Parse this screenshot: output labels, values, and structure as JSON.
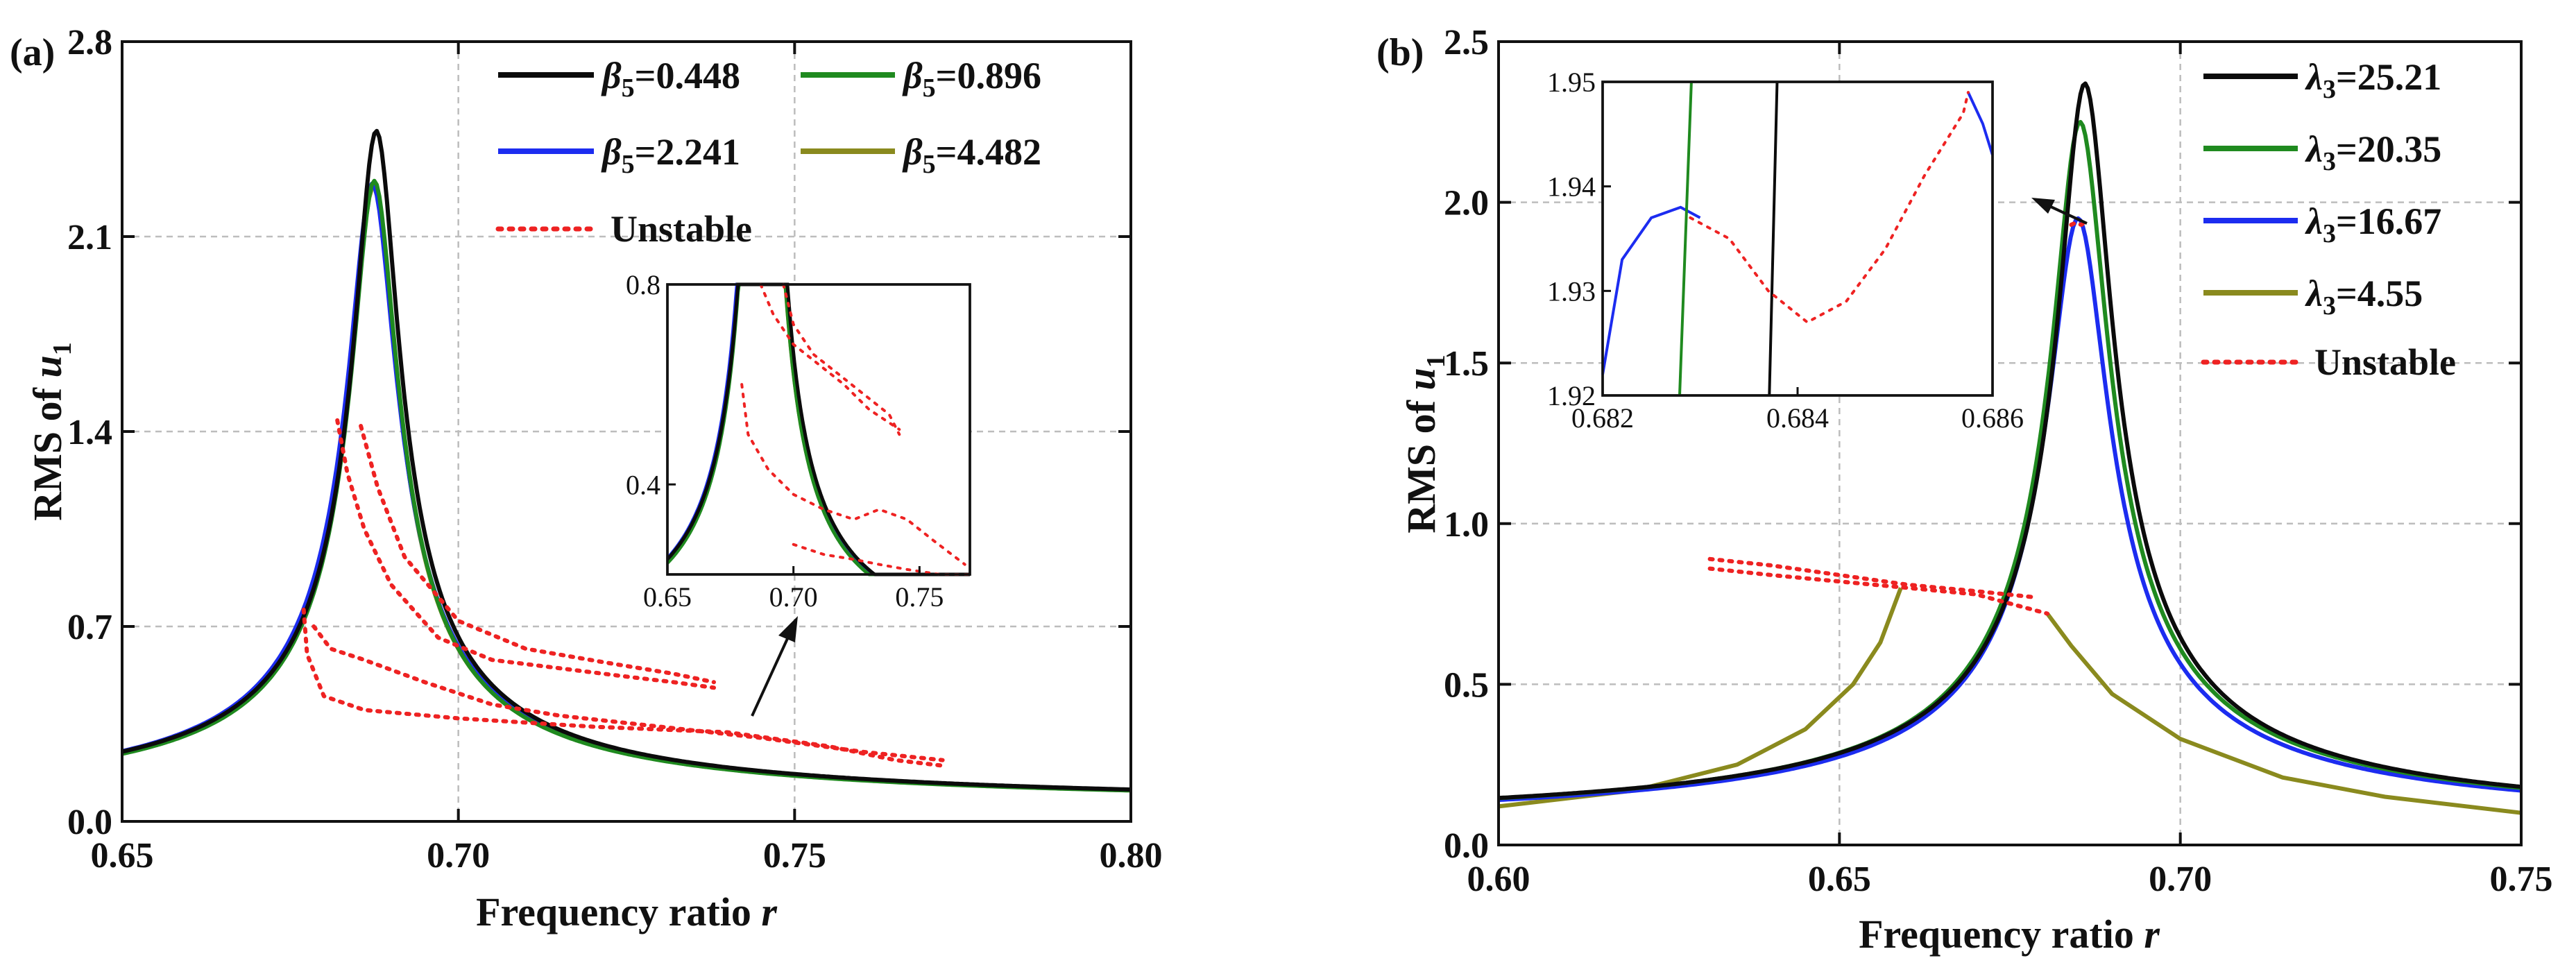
{
  "colors": {
    "black": "#0b0b0b",
    "green": "#1f8a1f",
    "blue": "#1c2cf0",
    "olive": "#8a8a1e",
    "unstable": "#ee2222"
  },
  "chart_data": [
    {
      "panel": "(a)",
      "type": "line",
      "xlabel_text": "Frequency ratio",
      "xlabel_var": "r",
      "ylabel_text": "RMS of",
      "ylabel_var": "u",
      "ylabel_sub": "1",
      "xlim": [
        0.65,
        0.8
      ],
      "ylim": [
        0.0,
        2.8
      ],
      "xticks": [
        "0.65",
        "0.70",
        "0.75",
        "0.80"
      ],
      "yticks": [
        "0.0",
        "0.7",
        "1.4",
        "2.1",
        "2.8"
      ],
      "legend_location": "top-right",
      "series": [
        {
          "name": "β5=0.448",
          "sym": "β",
          "sub": "5",
          "val": "=0.448",
          "color": "#0b0b0b",
          "peak_x": 0.6878,
          "peak_y": 2.48,
          "width": 0.0064
        },
        {
          "name": "β5=0.896",
          "sym": "β",
          "sub": "5",
          "val": "=0.896",
          "color": "#1f8a1f",
          "peak_x": 0.6875,
          "peak_y": 2.3,
          "width": 0.0066
        },
        {
          "name": "β5=2.241",
          "sym": "β",
          "sub": "5",
          "val": "=2.241",
          "color": "#1c2cf0",
          "peak_x": 0.6872,
          "peak_y": 2.29,
          "width": 0.0069
        },
        {
          "name": "β5=4.482",
          "sym": "β",
          "sub": "5",
          "val": "=4.482",
          "color": "#8a8a1e",
          "peak_x": 0.6874,
          "peak_y": 2.28,
          "width": 0.0067
        }
      ],
      "unstable_label": "Unstable",
      "unstable_branches": [
        {
          "x": [
            0.682,
            0.6835,
            0.686,
            0.69,
            0.697,
            0.705,
            0.715,
            0.725,
            0.732,
            0.738
          ],
          "y": [
            1.44,
            1.25,
            1.05,
            0.85,
            0.66,
            0.58,
            0.55,
            0.52,
            0.5,
            0.48
          ]
        },
        {
          "x": [
            0.6855,
            0.688,
            0.692,
            0.7,
            0.71,
            0.722,
            0.732,
            0.738
          ],
          "y": [
            1.42,
            1.2,
            0.95,
            0.72,
            0.62,
            0.57,
            0.53,
            0.5
          ]
        },
        {
          "x": [
            0.677,
            0.6775,
            0.68,
            0.686,
            0.7,
            0.72,
            0.74,
            0.755,
            0.765,
            0.772
          ],
          "y": [
            0.76,
            0.6,
            0.45,
            0.4,
            0.37,
            0.34,
            0.32,
            0.27,
            0.22,
            0.2
          ]
        },
        {
          "x": [
            0.6785,
            0.681,
            0.686,
            0.695,
            0.705,
            0.715,
            0.73,
            0.745,
            0.76,
            0.772
          ],
          "y": [
            0.7,
            0.62,
            0.58,
            0.5,
            0.42,
            0.38,
            0.34,
            0.3,
            0.25,
            0.22
          ]
        }
      ],
      "inset": {
        "xlim": [
          0.65,
          0.77
        ],
        "ylim": [
          0.22,
          0.8
        ],
        "xticks": [
          "0.65",
          "0.70",
          "0.75"
        ],
        "yticks": [
          "0.4",
          "0.8"
        ],
        "unstable_branches": [
          {
            "x": [
              0.687,
              0.692,
              0.7,
              0.71,
              0.72,
              0.73,
              0.742
            ],
            "y": [
              0.8,
              0.74,
              0.68,
              0.64,
              0.6,
              0.55,
              0.51
            ]
          },
          {
            "x": [
              0.696,
              0.7,
              0.708,
              0.718,
              0.728,
              0.738,
              0.742
            ],
            "y": [
              0.8,
              0.72,
              0.66,
              0.62,
              0.58,
              0.54,
              0.5
            ]
          },
          {
            "x": [
              0.6795,
              0.682,
              0.69,
              0.7,
              0.712,
              0.724,
              0.734,
              0.745,
              0.755,
              0.768
            ],
            "y": [
              0.6,
              0.5,
              0.43,
              0.38,
              0.35,
              0.33,
              0.35,
              0.33,
              0.29,
              0.24
            ]
          },
          {
            "x": [
              0.7,
              0.712,
              0.724,
              0.734,
              0.745,
              0.758,
              0.77
            ],
            "y": [
              0.28,
              0.26,
              0.25,
              0.24,
              0.23,
              0.22,
              0.22
            ]
          }
        ]
      }
    },
    {
      "panel": "(b)",
      "type": "line",
      "xlabel_text": "Frequency ratio",
      "xlabel_var": "r",
      "ylabel_text": "RMS of",
      "ylabel_var": "u",
      "ylabel_sub": "1",
      "xlim": [
        0.6,
        0.75
      ],
      "ylim": [
        0.0,
        2.5
      ],
      "xticks": [
        "0.60",
        "0.65",
        "0.70",
        "0.75"
      ],
      "yticks": [
        "0.0",
        "0.5",
        "1.0",
        "1.5",
        "2.0",
        "2.5"
      ],
      "legend_location": "top-right",
      "series": [
        {
          "name": "λ3=25.21",
          "sym": "λ",
          "sub": "3",
          "val": "=25.21",
          "color": "#0b0b0b",
          "peak_x": 0.686,
          "peak_y": 2.37,
          "width": 0.0075
        },
        {
          "name": "λ3=20.35",
          "sym": "λ",
          "sub": "3",
          "val": "=20.35",
          "color": "#1f8a1f",
          "peak_x": 0.6853,
          "peak_y": 2.25,
          "width": 0.0078
        },
        {
          "name": "λ3=16.67",
          "sym": "λ",
          "sub": "3",
          "val": "=16.67",
          "color": "#1c2cf0",
          "peak_x": 0.685,
          "peak_y": 1.95,
          "width": 0.0085
        },
        {
          "name": "λ3=4.55",
          "sym": "λ",
          "sub": "3",
          "val": "=4.55",
          "color": "#8a8a1e",
          "left_x": [
            0.6,
            0.62,
            0.635,
            0.645,
            0.652,
            0.656,
            0.659
          ],
          "left_y": [
            0.12,
            0.17,
            0.25,
            0.36,
            0.5,
            0.63,
            0.8
          ],
          "right_x": [
            0.6805,
            0.684,
            0.69,
            0.7,
            0.715,
            0.73,
            0.75
          ],
          "right_y": [
            0.72,
            0.62,
            0.47,
            0.33,
            0.21,
            0.15,
            0.1
          ]
        }
      ],
      "unstable_label": "Unstable",
      "unstable_branches": [
        {
          "x": [
            0.631,
            0.64,
            0.65,
            0.66,
            0.67,
            0.679
          ],
          "y": [
            0.89,
            0.87,
            0.84,
            0.81,
            0.79,
            0.77
          ]
        },
        {
          "x": [
            0.631,
            0.64,
            0.65,
            0.66,
            0.67,
            0.6805
          ],
          "y": [
            0.86,
            0.84,
            0.82,
            0.8,
            0.78,
            0.72
          ]
        },
        {
          "x": [
            0.684,
            0.6845,
            0.6855,
            0.686
          ],
          "y": [
            1.93,
            1.935,
            1.93,
            1.94
          ]
        }
      ],
      "inset": {
        "xlim": [
          0.682,
          0.686
        ],
        "ylim": [
          1.92,
          1.95
        ],
        "xticks": [
          "0.682",
          "0.684",
          "0.686"
        ],
        "yticks": [
          "1.92",
          "1.93",
          "1.94",
          "1.95"
        ],
        "lines": [
          {
            "color": "#1c2cf0",
            "x": [
              0.682,
              0.6822,
              0.6825,
              0.6828,
              0.683
            ],
            "y": [
              1.922,
              1.933,
              1.937,
              1.938,
              1.937
            ]
          },
          {
            "color": "#1f8a1f",
            "x": [
              0.68279,
              0.68285,
              0.68291
            ],
            "y": [
              1.92,
              1.935,
              1.95
            ]
          },
          {
            "color": "#0b0b0b",
            "x": [
              0.68371,
              0.68375,
              0.68379
            ],
            "y": [
              1.92,
              1.935,
              1.95
            ]
          },
          {
            "color": "#1c2cf0",
            "x": [
              0.68575,
              0.6859,
              0.686
            ],
            "y": [
              1.949,
              1.946,
              1.943
            ]
          }
        ],
        "unstable_branches": [
          {
            "x": [
              0.6829,
              0.6833,
              0.6837,
              0.6841,
              0.6845,
              0.6849,
              0.6853,
              0.6857,
              0.68575
            ],
            "y": [
              1.937,
              1.935,
              1.93,
              1.927,
              1.929,
              1.934,
              1.941,
              1.947,
              1.949
            ]
          }
        ]
      }
    }
  ]
}
